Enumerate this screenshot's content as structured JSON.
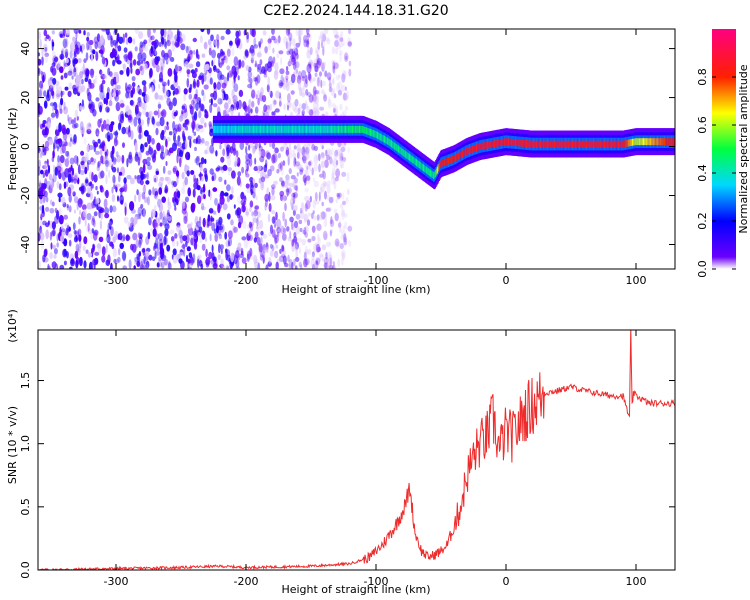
{
  "title": "C2E2.2024.144.18.31.G20",
  "chart_data": [
    {
      "type": "heatmap",
      "xlabel": "Height of straight line (km)",
      "ylabel": "Frequency (Hz)",
      "xlim": [
        -360,
        130
      ],
      "ylim": [
        -50,
        48
      ],
      "xticks": [
        -300,
        -200,
        -100,
        0,
        100
      ],
      "yticks": [
        -40,
        -20,
        0,
        20,
        40
      ],
      "colorbar": {
        "label": "Normalized spectral amplitude",
        "range": [
          0.0,
          1.0
        ],
        "ticks": [
          "0.0",
          "0.2",
          "0.4",
          "0.6",
          "0.8"
        ],
        "tick_values": [
          0.0,
          0.2,
          0.4,
          0.6,
          0.8
        ],
        "colormap": [
          "#ffffff",
          "#6a00ff",
          "#0000ff",
          "#00d8ff",
          "#00ff40",
          "#ffff00",
          "#ff2000",
          "#ff0080"
        ]
      },
      "ridge": {
        "x": [
          -225,
          -200,
          -180,
          -160,
          -140,
          -125,
          -110,
          -100,
          -90,
          -80,
          -70,
          -60,
          -55,
          -50,
          -45,
          -40,
          -30,
          -20,
          -10,
          0,
          20,
          50,
          90,
          100,
          130
        ],
        "y": [
          7,
          7,
          7,
          7,
          7,
          7,
          7,
          5,
          2,
          -2,
          -6,
          -10,
          -12,
          -7,
          -6,
          -5,
          -2,
          0,
          1,
          2,
          1,
          1,
          1,
          2,
          2
        ],
        "level": [
          0.35,
          0.4,
          0.4,
          0.4,
          0.4,
          0.45,
          0.5,
          0.45,
          0.45,
          0.45,
          0.45,
          0.45,
          0.45,
          0.85,
          0.8,
          0.8,
          0.85,
          0.85,
          0.85,
          0.85,
          0.85,
          0.85,
          0.85,
          0.6,
          0.85
        ]
      },
      "noise_region_x": [
        -360,
        -120
      ]
    },
    {
      "type": "line",
      "xlabel": "Height of straight line (km)",
      "ylabel": "SNR (10 * v/v)",
      "y_multiplier": "(x10⁴)",
      "xlim": [
        -360,
        130
      ],
      "ylim": [
        0,
        1.9
      ],
      "xticks": [
        -300,
        -200,
        -100,
        0,
        100
      ],
      "yticks": [
        "0.0",
        "0.5",
        "1.0",
        "1.5"
      ],
      "ytick_values": [
        0.0,
        0.5,
        1.0,
        1.5
      ],
      "color": "#ee2c2c",
      "series": [
        {
          "x": [
            -360,
            -250,
            -220,
            -200,
            -150,
            -120,
            -105,
            -95,
            -85,
            -78,
            -74,
            -70,
            -65,
            -60,
            -55,
            -50,
            -45,
            -40,
            -35,
            -30,
            -25,
            -20,
            -15,
            -10,
            -5,
            0,
            5,
            10,
            15,
            20,
            25,
            30,
            40,
            50,
            60,
            70,
            80,
            90,
            95,
            96,
            97,
            98,
            100,
            110,
            120,
            130
          ],
          "y": [
            0.0,
            0.02,
            0.03,
            0.02,
            0.03,
            0.05,
            0.1,
            0.2,
            0.35,
            0.5,
            0.65,
            0.3,
            0.15,
            0.1,
            0.12,
            0.15,
            0.2,
            0.35,
            0.5,
            0.75,
            0.9,
            1.0,
            1.05,
            1.2,
            0.95,
            1.1,
            1.05,
            1.15,
            1.25,
            1.3,
            1.35,
            1.4,
            1.42,
            1.45,
            1.42,
            1.4,
            1.38,
            1.38,
            1.2,
            1.9,
            1.3,
            1.4,
            1.38,
            1.32,
            1.32,
            1.32
          ]
        }
      ]
    }
  ]
}
